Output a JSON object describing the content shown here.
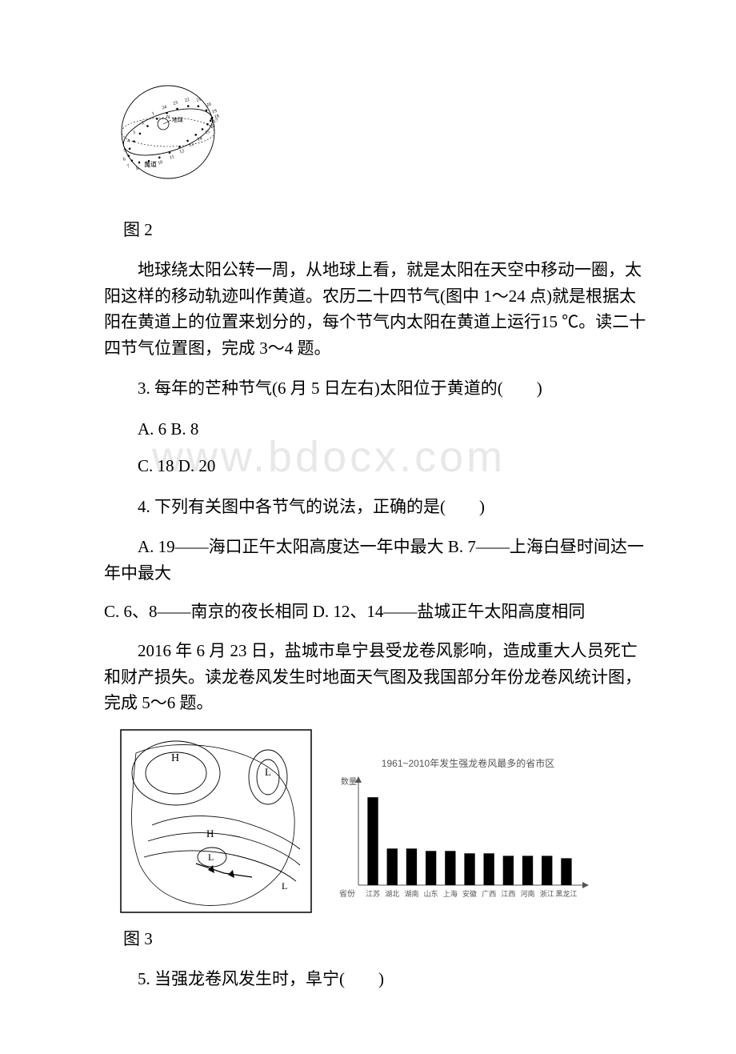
{
  "figure_labels": {
    "fig2": "图 2",
    "fig3": "图 3"
  },
  "passages": {
    "ecliptic_intro": "地球绕太阳公转一周，从地球上看，就是太阳在天空中移动一圈，太阳这样的移动轨迹叫作黄道。农历二十四节气(图中 1～24 点)就是根据太阳在黄道上的位置来划分的，每个节气内太阳在黄道上运行15 ℃。读二十四节气位置图，完成 3～4 题。",
    "tornado_intro": "2016 年 6 月 23 日，盐城市阜宁县受龙卷风影响，造成重大人员死亡和财产损失。读龙卷风发生时地面天气图及我国部分年份龙卷风统计图，完成 5～6 题。"
  },
  "questions": {
    "q3": {
      "stem": "3. 每年的芒种节气(6 月 5 日左右)太阳位于黄道的(　　)",
      "opts1": "A. 6 B. 8",
      "opts2": "C. 18 D. 20"
    },
    "q4": {
      "stem": "4. 下列有关图中各节气的说法，正确的是(　　)",
      "opts1": "A. 19——海口正午太阳高度达一年中最大 B. 7——上海白昼时间达一年中最大",
      "opts2": "C. 6、8——南京的夜长相同 D. 12、14——盐城正午太阳高度相同"
    },
    "q5": {
      "stem": "5. 当强龙卷风发生时，阜宁(　　)"
    }
  },
  "watermark": "www.bdocx.com",
  "ecliptic_diagram": {
    "earth_label": "地球",
    "huangdao_label": "黄道",
    "circle_stroke": "#000000",
    "circle_stroke_width": 0.8,
    "ellipse_stroke": "#000000",
    "point_color": "#000000",
    "label_fontsize": 6
  },
  "chart": {
    "type": "bar",
    "title": "1961~2010年发生强龙卷风最多的省市区",
    "y_label": "数量",
    "x_label": "省份",
    "categories": [
      "江苏",
      "湖北",
      "湖南",
      "山东",
      "上海",
      "安徽",
      "广西",
      "江西",
      "河南",
      "浙江",
      "黑龙江"
    ],
    "values": [
      36,
      15,
      15,
      14,
      14,
      13,
      13,
      12,
      12,
      12,
      11
    ],
    "ylim": [
      0,
      40
    ],
    "bar_color": "#000000",
    "bar_width": 0.55,
    "axis_color": "#555555",
    "background_color": "#ffffff",
    "label_fontsize": 9,
    "tick_fontsize": 9
  },
  "weather_map": {
    "border_color": "#000000",
    "line_color": "#000000",
    "H_label": "H",
    "L_label": "L"
  }
}
